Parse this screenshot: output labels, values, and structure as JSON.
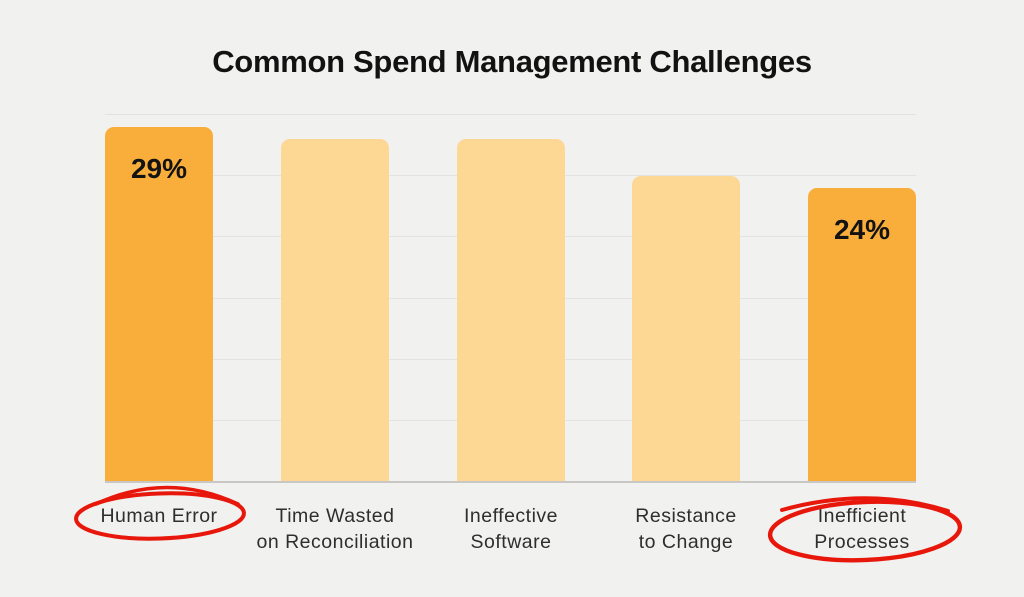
{
  "chart_data": {
    "type": "bar",
    "title": "Common Spend Management Challenges",
    "categories": [
      "Human Error",
      "Time Wasted on Reconciliation",
      "Ineffective Software",
      "Resistance to Change",
      "Inefficient Processes"
    ],
    "values": [
      29,
      28,
      28,
      25,
      24
    ],
    "xlabel": "",
    "ylabel": "",
    "ylim": [
      0,
      30
    ],
    "gridline_step_pct": 5,
    "grid": true,
    "legend_position": "none",
    "y_axis_tick_labels_visible": false,
    "bars": [
      {
        "label_lines": [
          "Human Error"
        ],
        "value": 29,
        "value_label": "29%",
        "highlighted": true,
        "circled": true
      },
      {
        "label_lines": [
          "Time Wasted",
          "on Reconciliation"
        ],
        "value": 28,
        "value_label": "",
        "highlighted": false,
        "circled": false
      },
      {
        "label_lines": [
          "Ineffective",
          "Software"
        ],
        "value": 28,
        "value_label": "",
        "highlighted": false,
        "circled": false
      },
      {
        "label_lines": [
          "Resistance",
          "to Change"
        ],
        "value": 25,
        "value_label": "",
        "highlighted": false,
        "circled": false
      },
      {
        "label_lines": [
          "Inefficient",
          "Processes"
        ],
        "value": 24,
        "value_label": "24%",
        "highlighted": true,
        "circled": true
      }
    ],
    "annotations": [
      {
        "type": "hand-drawn-red-circle",
        "target": "Human Error"
      },
      {
        "type": "hand-drawn-red-circle",
        "target": "Inefficient Processes"
      }
    ],
    "colors": {
      "background": "#F1F1EF",
      "highlight_bar": "#F9AE3C",
      "regular_bar": "#FDD794",
      "gridline": "#E3E2E0",
      "baseline": "#C8C7C4",
      "title_text": "#121212",
      "label_text": "#2E2E2E",
      "value_text": "#131313",
      "annotation_red": "#E8170B"
    }
  }
}
